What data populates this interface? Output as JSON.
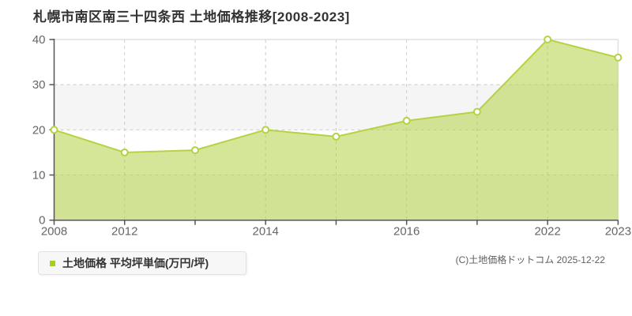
{
  "title": "札幌市南区南三十四条西 土地価格推移[2008-2023]",
  "legend": {
    "label": "土地価格 平均坪単価(万円/坪)",
    "marker_color": "#a0d020"
  },
  "footer": {
    "copyright": "(C)土地価格ドットコム 2025-12-22"
  },
  "chart_data": {
    "type": "area",
    "title": "札幌市南区南三十四条西 土地価格推移[2008-2023]",
    "x": [
      2008,
      2012,
      2013,
      2014,
      2015,
      2016,
      2017,
      2022,
      2023
    ],
    "x_tick_labels": [
      "2008",
      "2012",
      "",
      "2014",
      "",
      "2016",
      "",
      "2022",
      "2023"
    ],
    "series": [
      {
        "name": "土地価格 平均坪単価(万円/坪)",
        "values": [
          20,
          15,
          15.5,
          20,
          18.5,
          22,
          24,
          40,
          36
        ]
      }
    ],
    "xlabel": "",
    "ylabel": "",
    "unit": "万円/坪",
    "ylim": [
      0,
      40
    ],
    "y_ticks": [
      0,
      10,
      20,
      30,
      40
    ],
    "shaded_bands": [
      [
        20,
        30
      ],
      [
        0,
        10
      ]
    ],
    "grid": true,
    "legend_position": "bottom-left",
    "colors": {
      "line": "#b5d243",
      "fill": "rgba(181,210,67,0.55)",
      "band": "#f5f5f5",
      "grid": "#cccccc",
      "border": "#e0e0e0",
      "axis": "#555555",
      "tick_label": "#666666",
      "title": "#333333"
    }
  }
}
